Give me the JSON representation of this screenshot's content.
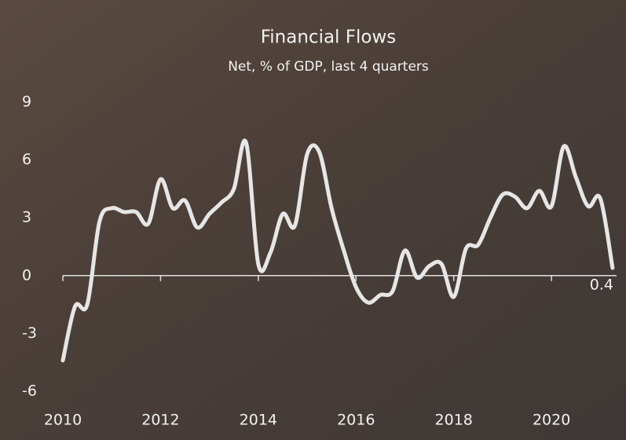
{
  "chart_data": {
    "type": "line",
    "title": "Financial Flows",
    "subtitle": "Net, % of GDP, last 4 quarters",
    "x": [
      2010,
      2010.25,
      2010.5,
      2010.75,
      2011,
      2011.25,
      2011.5,
      2011.75,
      2012,
      2012.25,
      2012.5,
      2012.75,
      2013,
      2013.25,
      2013.5,
      2013.75,
      2014,
      2014.25,
      2014.5,
      2014.75,
      2015,
      2015.25,
      2015.5,
      2015.75,
      2016,
      2016.25,
      2016.5,
      2016.75,
      2017,
      2017.25,
      2017.5,
      2017.75,
      2018,
      2018.25,
      2018.5,
      2018.75,
      2019,
      2019.25,
      2019.5,
      2019.75,
      2020,
      2020.25,
      2020.5,
      2020.75,
      2021,
      2021.25
    ],
    "values": [
      -4.4,
      -1.6,
      -1.5,
      2.8,
      3.5,
      3.3,
      3.3,
      2.7,
      5.0,
      3.5,
      3.9,
      2.5,
      3.2,
      3.8,
      4.5,
      6.9,
      0.6,
      1.2,
      3.2,
      2.6,
      6.3,
      6.4,
      3.5,
      1.3,
      -0.6,
      -1.4,
      -1.0,
      -0.8,
      1.3,
      -0.1,
      0.5,
      0.6,
      -1.1,
      1.4,
      1.6,
      3.0,
      4.2,
      4.1,
      3.5,
      4.4,
      3.6,
      6.7,
      5.1,
      3.6,
      4.0,
      0.4
    ],
    "color": "#e6e6e6",
    "xlim": [
      2010,
      2021.3
    ],
    "xticks": [
      2010,
      2012,
      2014,
      2016,
      2018,
      2020
    ],
    "ylim": [
      -6,
      9
    ],
    "yticks": [
      -6,
      -3,
      0,
      3,
      6,
      9
    ]
  }
}
